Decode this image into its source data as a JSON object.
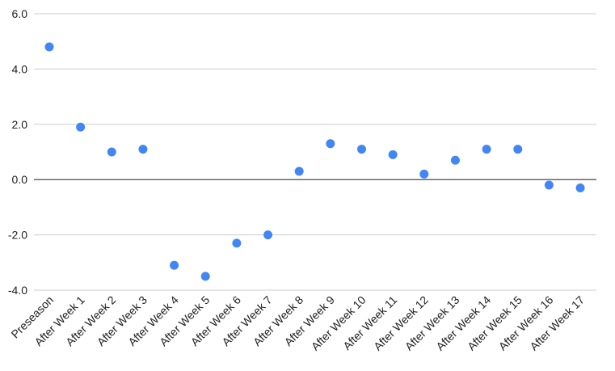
{
  "chart_data": {
    "type": "scatter",
    "categories": [
      "Preseason",
      "After Week 1",
      "After Week 2",
      "After Week 3",
      "After Week 4",
      "After Week 5",
      "After Week 6",
      "After Week 7",
      "After Week 8",
      "After Week 9",
      "After Week 10",
      "After Week 11",
      "After Week 12",
      "After Week 13",
      "After Week 14",
      "After Week 15",
      "After Week 16",
      "After Week 17"
    ],
    "values": [
      4.8,
      1.9,
      1.0,
      1.1,
      -3.1,
      -3.5,
      -2.3,
      -2.0,
      0.3,
      1.3,
      1.1,
      0.9,
      0.2,
      0.7,
      1.1,
      1.1,
      -0.2,
      -0.3
    ],
    "title": "",
    "xlabel": "",
    "ylabel": "",
    "ylim": [
      -4.0,
      6.0
    ],
    "yticks": [
      -4.0,
      -2.0,
      0.0,
      2.0,
      4.0,
      6.0
    ],
    "ytick_labels": [
      "-4.0",
      "-2.0",
      "0.0",
      "2.0",
      "4.0",
      "6.0"
    ],
    "grid": true,
    "legend": "none",
    "point_color": "#4285f4",
    "gridline_color": "#cccccc",
    "zero_line_color": "#333333"
  }
}
